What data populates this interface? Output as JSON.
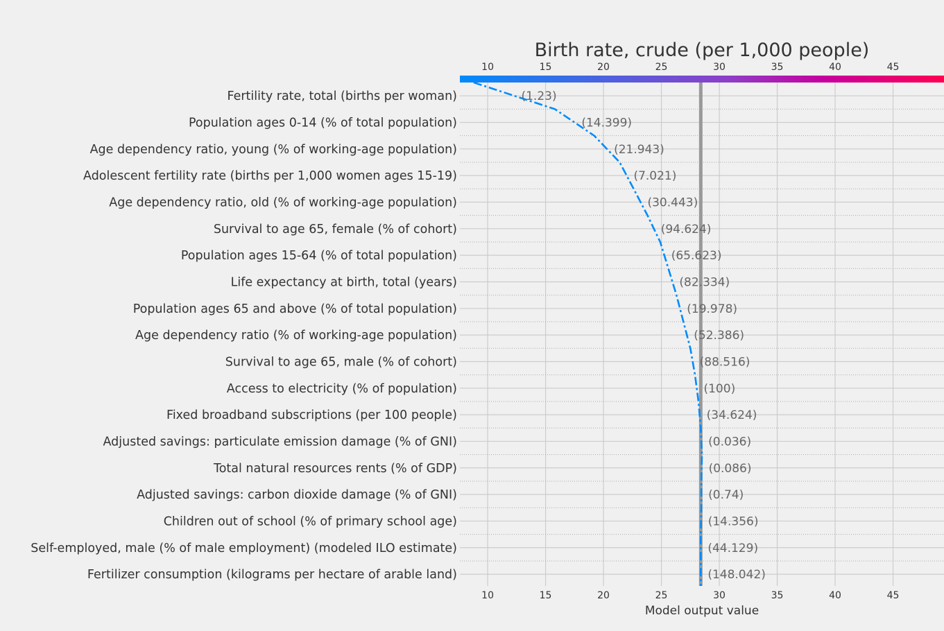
{
  "chart_data": {
    "type": "line",
    "title": "Birth rate, crude (per 1,000 people)",
    "xlabel": "Model output value",
    "xlim": [
      7.6,
      49.4
    ],
    "x_ticks": [
      10,
      15,
      20,
      25,
      30,
      35,
      40,
      45
    ],
    "base_value": 28.4,
    "start_value": 8.8,
    "colors": {
      "line": "#008bfb",
      "base_line": "#999999",
      "colorbar_low": "#008bfb",
      "colorbar_high": "#ff0052"
    },
    "features": [
      {
        "name": "Fertility rate, total (births per woman)",
        "value": "(1.23)",
        "cum": 15.8
      },
      {
        "name": "Population ages 0-14 (% of total population)",
        "value": "(14.399)",
        "cum": 19.2
      },
      {
        "name": "Age dependency ratio, young (% of working-age population)",
        "value": "(21.943)",
        "cum": 21.4
      },
      {
        "name": "Adolescent fertility rate (births per 1,000 women ages 15-19)",
        "value": "(7.021)",
        "cum": 22.6
      },
      {
        "name": "Age dependency ratio, old (% of working-age population)",
        "value": "(30.443)",
        "cum": 23.8
      },
      {
        "name": "Survival to age 65, female (% of cohort)",
        "value": "(94.624)",
        "cum": 24.9
      },
      {
        "name": "Population ages 15-64 (% of total population)",
        "value": "(65.623)",
        "cum": 25.6
      },
      {
        "name": "Life expectancy at birth, total (years)",
        "value": "(82.334)",
        "cum": 26.3
      },
      {
        "name": "Population ages 65 and above (% of total population)",
        "value": "(19.978)",
        "cum": 26.9
      },
      {
        "name": "Age dependency ratio (% of working-age population)",
        "value": "(52.386)",
        "cum": 27.5
      },
      {
        "name": "Survival to age 65, male (% of cohort)",
        "value": "(88.516)",
        "cum": 27.9
      },
      {
        "name": "Access to electricity (% of population)",
        "value": "(100)",
        "cum": 28.2
      },
      {
        "name": "Fixed broadband subscriptions (per 100 people)",
        "value": "(34.624)",
        "cum": 28.4
      },
      {
        "name": "Adjusted savings: particulate emission damage (% of GNI)",
        "value": "(0.036)",
        "cum": 28.5
      },
      {
        "name": "Total natural resources rents (% of GDP)",
        "value": "(0.086)",
        "cum": 28.45
      },
      {
        "name": "Adjusted savings: carbon dioxide damage (% of GNI)",
        "value": "(0.74)",
        "cum": 28.45
      },
      {
        "name": "Children out of school (% of primary school age)",
        "value": "(14.356)",
        "cum": 28.4
      },
      {
        "name": "Self-employed, male (% of male employment) (modeled ILO estimate)",
        "value": "(44.129)",
        "cum": 28.4
      },
      {
        "name": "Fertilizer consumption (kilograms per hectare of arable land)",
        "value": "(148.042)",
        "cum": 28.4
      }
    ]
  }
}
